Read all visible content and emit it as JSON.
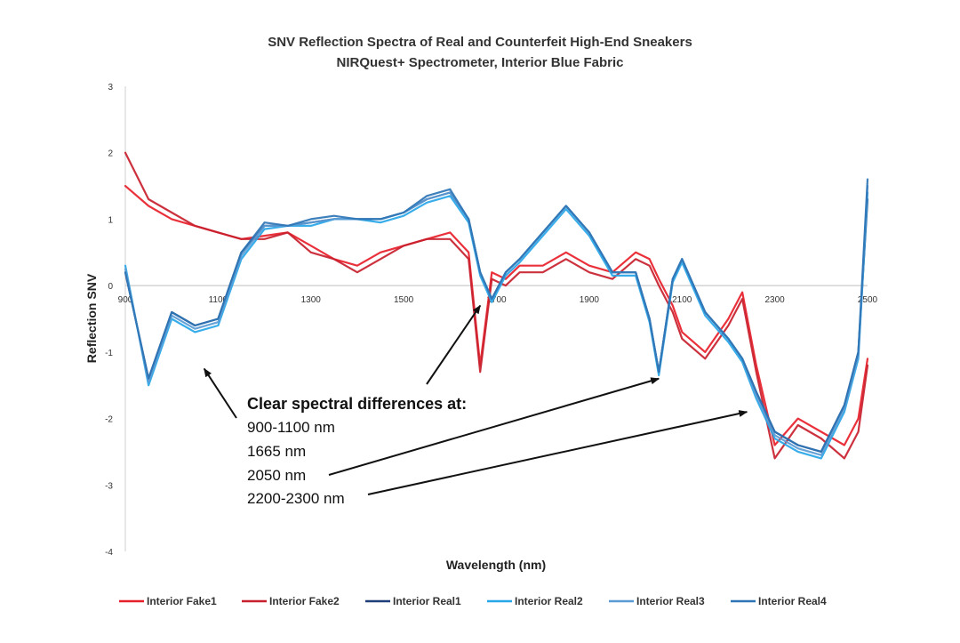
{
  "chart_data": {
    "type": "line",
    "title": "SNV Reflection Spectra of Real and Counterfeit High-End Sneakers",
    "subtitle": "NIRQuest+ Spectrometer, Interior Blue Fabric",
    "xlabel": "Wavelength (nm)",
    "ylabel": "Reflection SNV",
    "xlim": [
      900,
      2500
    ],
    "ylim": [
      -4,
      3
    ],
    "x_ticks": [
      "900",
      "1100",
      "1300",
      "1500",
      "1700",
      "1900",
      "2100",
      "2300",
      "2500"
    ],
    "y_ticks": [
      "3",
      "2",
      "1",
      "0",
      "-1",
      "-2",
      "-3",
      "-4"
    ],
    "grid": false,
    "legend_position": "bottom",
    "x": [
      900,
      950,
      1000,
      1050,
      1100,
      1150,
      1200,
      1250,
      1300,
      1350,
      1400,
      1450,
      1500,
      1550,
      1600,
      1640,
      1665,
      1690,
      1720,
      1750,
      1800,
      1850,
      1900,
      1950,
      2000,
      2030,
      2050,
      2080,
      2100,
      2150,
      2200,
      2230,
      2260,
      2300,
      2350,
      2400,
      2450,
      2480,
      2500
    ],
    "series": [
      {
        "name": "Interior Fake1",
        "color": "#e8202a",
        "values": [
          1.5,
          1.2,
          1.0,
          0.9,
          0.8,
          0.7,
          0.75,
          0.8,
          0.6,
          0.4,
          0.3,
          0.5,
          0.6,
          0.7,
          0.8,
          0.5,
          -1.2,
          0.2,
          0.1,
          0.3,
          0.3,
          0.5,
          0.3,
          0.2,
          0.5,
          0.4,
          0.1,
          -0.3,
          -0.7,
          -1.0,
          -0.5,
          -0.1,
          -1.2,
          -2.4,
          -2.0,
          -2.2,
          -2.4,
          -2.0,
          -1.1
        ]
      },
      {
        "name": "Interior Fake2",
        "color": "#c8202e",
        "values": [
          2.0,
          1.3,
          1.1,
          0.9,
          0.8,
          0.7,
          0.7,
          0.8,
          0.5,
          0.4,
          0.2,
          0.4,
          0.6,
          0.7,
          0.7,
          0.4,
          -1.3,
          0.1,
          0.0,
          0.2,
          0.2,
          0.4,
          0.2,
          0.1,
          0.4,
          0.3,
          0.0,
          -0.4,
          -0.8,
          -1.1,
          -0.6,
          -0.2,
          -1.3,
          -2.6,
          -2.1,
          -2.3,
          -2.6,
          -2.2,
          -1.2
        ]
      },
      {
        "name": "Interior Real1",
        "color": "#1f3f7a",
        "values": [
          0.2,
          -1.4,
          -0.4,
          -0.6,
          -0.5,
          0.5,
          0.9,
          0.9,
          0.95,
          1.0,
          1.0,
          1.0,
          1.1,
          1.3,
          1.4,
          1.0,
          0.2,
          -0.2,
          0.2,
          0.4,
          0.8,
          1.2,
          0.8,
          0.2,
          0.2,
          -0.5,
          -1.3,
          0.1,
          0.4,
          -0.4,
          -0.8,
          -1.1,
          -1.6,
          -2.2,
          -2.4,
          -2.5,
          -1.8,
          -1.0,
          1.3
        ]
      },
      {
        "name": "Interior Real2",
        "color": "#27a6e8",
        "values": [
          0.3,
          -1.5,
          -0.5,
          -0.7,
          -0.6,
          0.4,
          0.85,
          0.9,
          0.9,
          1.0,
          1.0,
          0.95,
          1.05,
          1.25,
          1.35,
          0.95,
          0.15,
          -0.25,
          0.15,
          0.35,
          0.75,
          1.15,
          0.75,
          0.15,
          0.15,
          -0.55,
          -1.35,
          0.05,
          0.35,
          -0.45,
          -0.85,
          -1.15,
          -1.7,
          -2.3,
          -2.5,
          -2.6,
          -1.9,
          -1.1,
          1.4
        ]
      },
      {
        "name": "Interior Real3",
        "color": "#5b9bd5",
        "values": [
          0.25,
          -1.45,
          -0.45,
          -0.65,
          -0.55,
          0.45,
          0.9,
          0.9,
          0.95,
          1.0,
          1.0,
          1.0,
          1.1,
          1.3,
          1.4,
          1.0,
          0.2,
          -0.2,
          0.2,
          0.4,
          0.8,
          1.2,
          0.8,
          0.2,
          0.2,
          -0.5,
          -1.3,
          0.1,
          0.4,
          -0.4,
          -0.8,
          -1.1,
          -1.65,
          -2.25,
          -2.45,
          -2.55,
          -1.85,
          -1.05,
          1.5
        ]
      },
      {
        "name": "Interior Real4",
        "color": "#2e75b6",
        "values": [
          0.2,
          -1.4,
          -0.4,
          -0.6,
          -0.5,
          0.5,
          0.95,
          0.9,
          1.0,
          1.05,
          1.0,
          1.0,
          1.1,
          1.35,
          1.45,
          1.0,
          0.2,
          -0.2,
          0.2,
          0.4,
          0.8,
          1.2,
          0.8,
          0.2,
          0.2,
          -0.5,
          -1.3,
          0.1,
          0.4,
          -0.4,
          -0.8,
          -1.1,
          -1.6,
          -2.2,
          -2.4,
          -2.5,
          -1.8,
          -1.0,
          1.6
        ]
      }
    ],
    "annotations": {
      "heading": "Clear spectral differences at:",
      "lines": [
        "900-1100 nm",
        "1665 nm",
        "2050 nm",
        "2200-2300 nm"
      ],
      "arrow_targets": [
        {
          "x": 1070,
          "y": -1.25
        },
        {
          "x": 1665,
          "y": -0.3
        },
        {
          "x": 2050,
          "y": -1.4
        },
        {
          "x": 2240,
          "y": -1.9
        }
      ]
    }
  }
}
